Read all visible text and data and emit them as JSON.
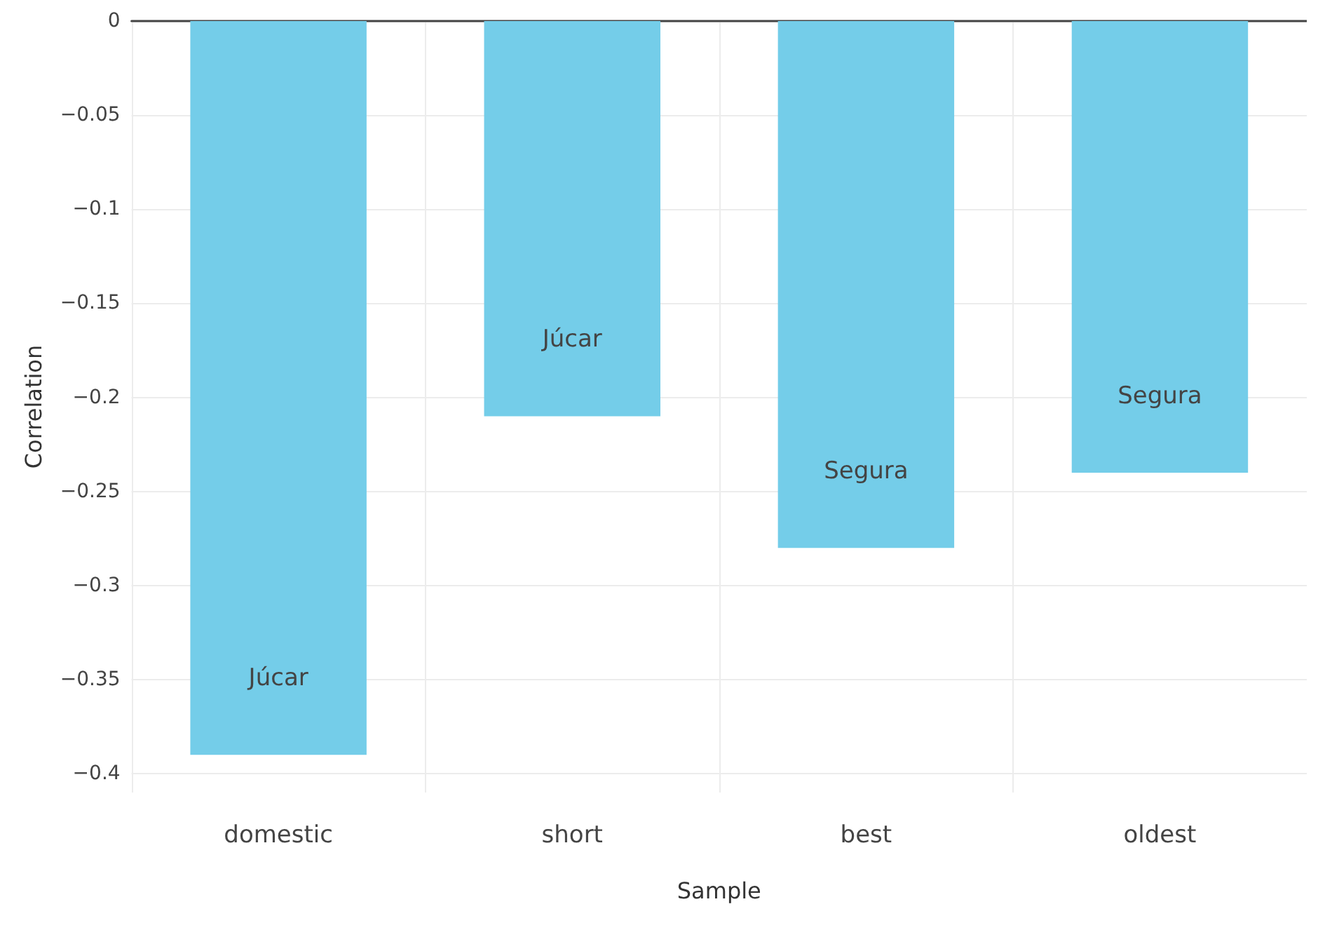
{
  "chart_data": {
    "type": "bar",
    "xlabel": "Sample",
    "ylabel": "Correlation",
    "categories": [
      "domestic",
      "short",
      "best",
      "oldest"
    ],
    "values": [
      -0.39,
      -0.21,
      -0.28,
      -0.24
    ],
    "color": "#74cde9",
    "ylim": [
      -0.41,
      0
    ],
    "yticks": [
      {
        "value": -0.4,
        "label": "−0.4"
      },
      {
        "value": -0.35,
        "label": "−0.35"
      },
      {
        "value": -0.3,
        "label": "−0.3"
      },
      {
        "value": -0.25,
        "label": "−0.25"
      },
      {
        "value": -0.2,
        "label": "−0.2"
      },
      {
        "value": -0.15,
        "label": "−0.15"
      },
      {
        "value": -0.1,
        "label": "−0.1"
      },
      {
        "value": -0.05,
        "label": "−0.05"
      },
      0
    ],
    "value_labels": [
      "Júcar",
      "Júcar",
      "Segura",
      "Segura"
    ],
    "grid": true
  }
}
